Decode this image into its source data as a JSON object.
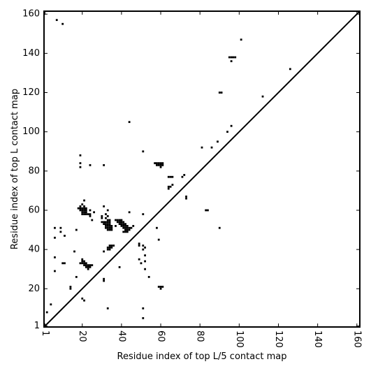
{
  "chart_data": {
    "type": "scatter",
    "xlabel": "Residue index of top L/5 contact map",
    "ylabel": "Residue index of top L contact map",
    "color": "#000000",
    "xlim": [
      0.5,
      161.5
    ],
    "ylim": [
      0.5,
      161.5
    ],
    "xticks": [
      1,
      20,
      40,
      60,
      80,
      100,
      120,
      140,
      160
    ],
    "yticks": [
      1,
      20,
      40,
      60,
      80,
      100,
      120,
      140,
      160
    ],
    "diagonal": true,
    "x": [
      7,
      10,
      101,
      95,
      96,
      97,
      98,
      96,
      126,
      90,
      91,
      112,
      44,
      96,
      94,
      89,
      81,
      86,
      51,
      19,
      57,
      58,
      59,
      60,
      61,
      58,
      59,
      60,
      61,
      60,
      19,
      19,
      24,
      31,
      64,
      65,
      66,
      64,
      65,
      66,
      64,
      71,
      72,
      73,
      73,
      21,
      24,
      24,
      24,
      25,
      33,
      31,
      26,
      44,
      6,
      9,
      9,
      11,
      6,
      51,
      58,
      59,
      49,
      49,
      51,
      51,
      52,
      31,
      16,
      52,
      6,
      49,
      50,
      52,
      39,
      10,
      11,
      6,
      52,
      17,
      54,
      31,
      31,
      14,
      14,
      59,
      60,
      61,
      60,
      20,
      21,
      51,
      33,
      4,
      2,
      51,
      90,
      83,
      84,
      17,
      18,
      19,
      20,
      21,
      22,
      19,
      20,
      21,
      22,
      20,
      21,
      22,
      20,
      21,
      22,
      23,
      19,
      21,
      20,
      30,
      30,
      32,
      33,
      30,
      31,
      32,
      33,
      34,
      31,
      32,
      33,
      34,
      32,
      33,
      34,
      35,
      32,
      33,
      34,
      35,
      33,
      34,
      35,
      33,
      34,
      32,
      37,
      38,
      39,
      40,
      38,
      39,
      40,
      41,
      39,
      40,
      41,
      42,
      40,
      41,
      42,
      43,
      41,
      42,
      43,
      44,
      45,
      42,
      43,
      44,
      41,
      42,
      43,
      37,
      46,
      20,
      21,
      20,
      19,
      20,
      21,
      22,
      21,
      22,
      23,
      24,
      25,
      22,
      23,
      24,
      23,
      34,
      35,
      36,
      33,
      34,
      35,
      33,
      34
    ],
    "y": [
      157,
      155,
      147,
      138,
      138,
      138,
      138,
      136,
      132,
      120,
      120,
      118,
      105,
      103,
      100,
      95,
      92,
      92,
      90,
      88,
      84,
      84,
      84,
      84,
      84,
      83,
      83,
      83,
      83,
      82,
      84,
      82,
      83,
      83,
      77,
      77,
      77,
      72,
      72,
      73,
      71,
      77,
      78,
      67,
      66,
      65,
      60,
      58,
      57,
      55,
      60,
      62,
      59,
      59,
      51,
      51,
      49,
      47,
      46,
      58,
      51,
      45,
      43,
      42,
      42,
      40,
      41,
      39,
      39,
      37,
      36,
      35,
      33,
      34,
      31,
      33,
      33,
      29,
      30,
      26,
      26,
      25,
      24,
      21,
      20,
      21,
      21,
      21,
      20,
      15,
      14,
      10,
      10,
      12,
      8,
      5,
      51,
      60,
      60,
      50,
      61,
      61,
      61,
      61,
      61,
      60,
      60,
      60,
      60,
      59,
      59,
      59,
      58,
      58,
      58,
      58,
      62,
      62,
      63,
      57,
      56,
      56,
      57,
      54,
      54,
      54,
      54,
      54,
      53,
      53,
      53,
      53,
      52,
      52,
      52,
      52,
      51,
      51,
      51,
      51,
      50,
      50,
      50,
      55,
      55,
      58,
      55,
      55,
      55,
      55,
      54,
      54,
      54,
      54,
      53,
      53,
      53,
      53,
      52,
      52,
      52,
      52,
      51,
      51,
      51,
      51,
      51,
      50,
      50,
      50,
      49,
      49,
      49,
      52,
      52,
      35,
      34,
      34,
      33,
      33,
      33,
      33,
      32,
      32,
      32,
      32,
      32,
      31,
      31,
      31,
      30,
      42,
      42,
      42,
      41,
      41,
      41,
      40,
      40
    ]
  }
}
